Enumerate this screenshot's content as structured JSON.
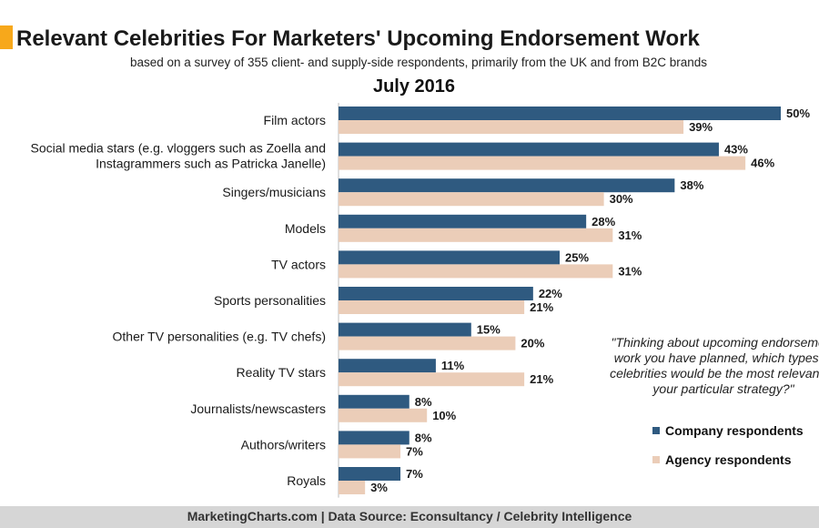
{
  "header": {
    "title": "Relevant Celebrities For Marketers' Upcoming Endorsement Work",
    "subtitle": "based on a survey of 355 client- and supply-side respondents, primarily from the UK and from B2C brands",
    "period": "July 2016"
  },
  "annotation": {
    "question": "\"Thinking about upcoming endorsement work you have planned, which types of celebrities would be the most relevant to your particular strategy?\""
  },
  "footer": {
    "source": "MarketingCharts.com | Data Source: Econsultancy / Celebrity Intelligence"
  },
  "colors": {
    "company": "#2f5a80",
    "agency": "#ebcdb8",
    "title_mark": "#f7a81b",
    "footer_bg": "#d6d6d6"
  },
  "chart_data": {
    "type": "bar",
    "orientation": "horizontal",
    "categories": [
      [
        "Film actors"
      ],
      [
        "Social media stars (e.g. vloggers such as Zoella and",
        "Instagrammers such as Patricka Janelle)"
      ],
      [
        "Singers/musicians"
      ],
      [
        "Models"
      ],
      [
        "TV actors"
      ],
      [
        "Sports personalities"
      ],
      [
        "Other TV personalities (e.g. TV chefs)"
      ],
      [
        "Reality TV stars"
      ],
      [
        "Journalists/newscasters"
      ],
      [
        "Authors/writers"
      ],
      [
        "Royals"
      ]
    ],
    "series": [
      {
        "name": "Company respondents",
        "values": [
          50,
          43,
          38,
          28,
          25,
          22,
          15,
          11,
          8,
          8,
          7
        ],
        "labels": [
          "50%",
          "43%",
          "38%",
          "28%",
          "25%",
          "22%",
          "15%",
          "11%",
          "8%",
          "8%",
          "7%"
        ]
      },
      {
        "name": "Agency respondents",
        "values": [
          39,
          46,
          30,
          31,
          31,
          21,
          20,
          21,
          10,
          7,
          3
        ],
        "labels": [
          "39%",
          "46%",
          "30%",
          "31%",
          "31%",
          "21%",
          "20%",
          "21%",
          "10%",
          "7%",
          "3%"
        ]
      }
    ],
    "xlim": [
      0,
      50
    ],
    "grid": false,
    "legend": "bottom-right"
  }
}
